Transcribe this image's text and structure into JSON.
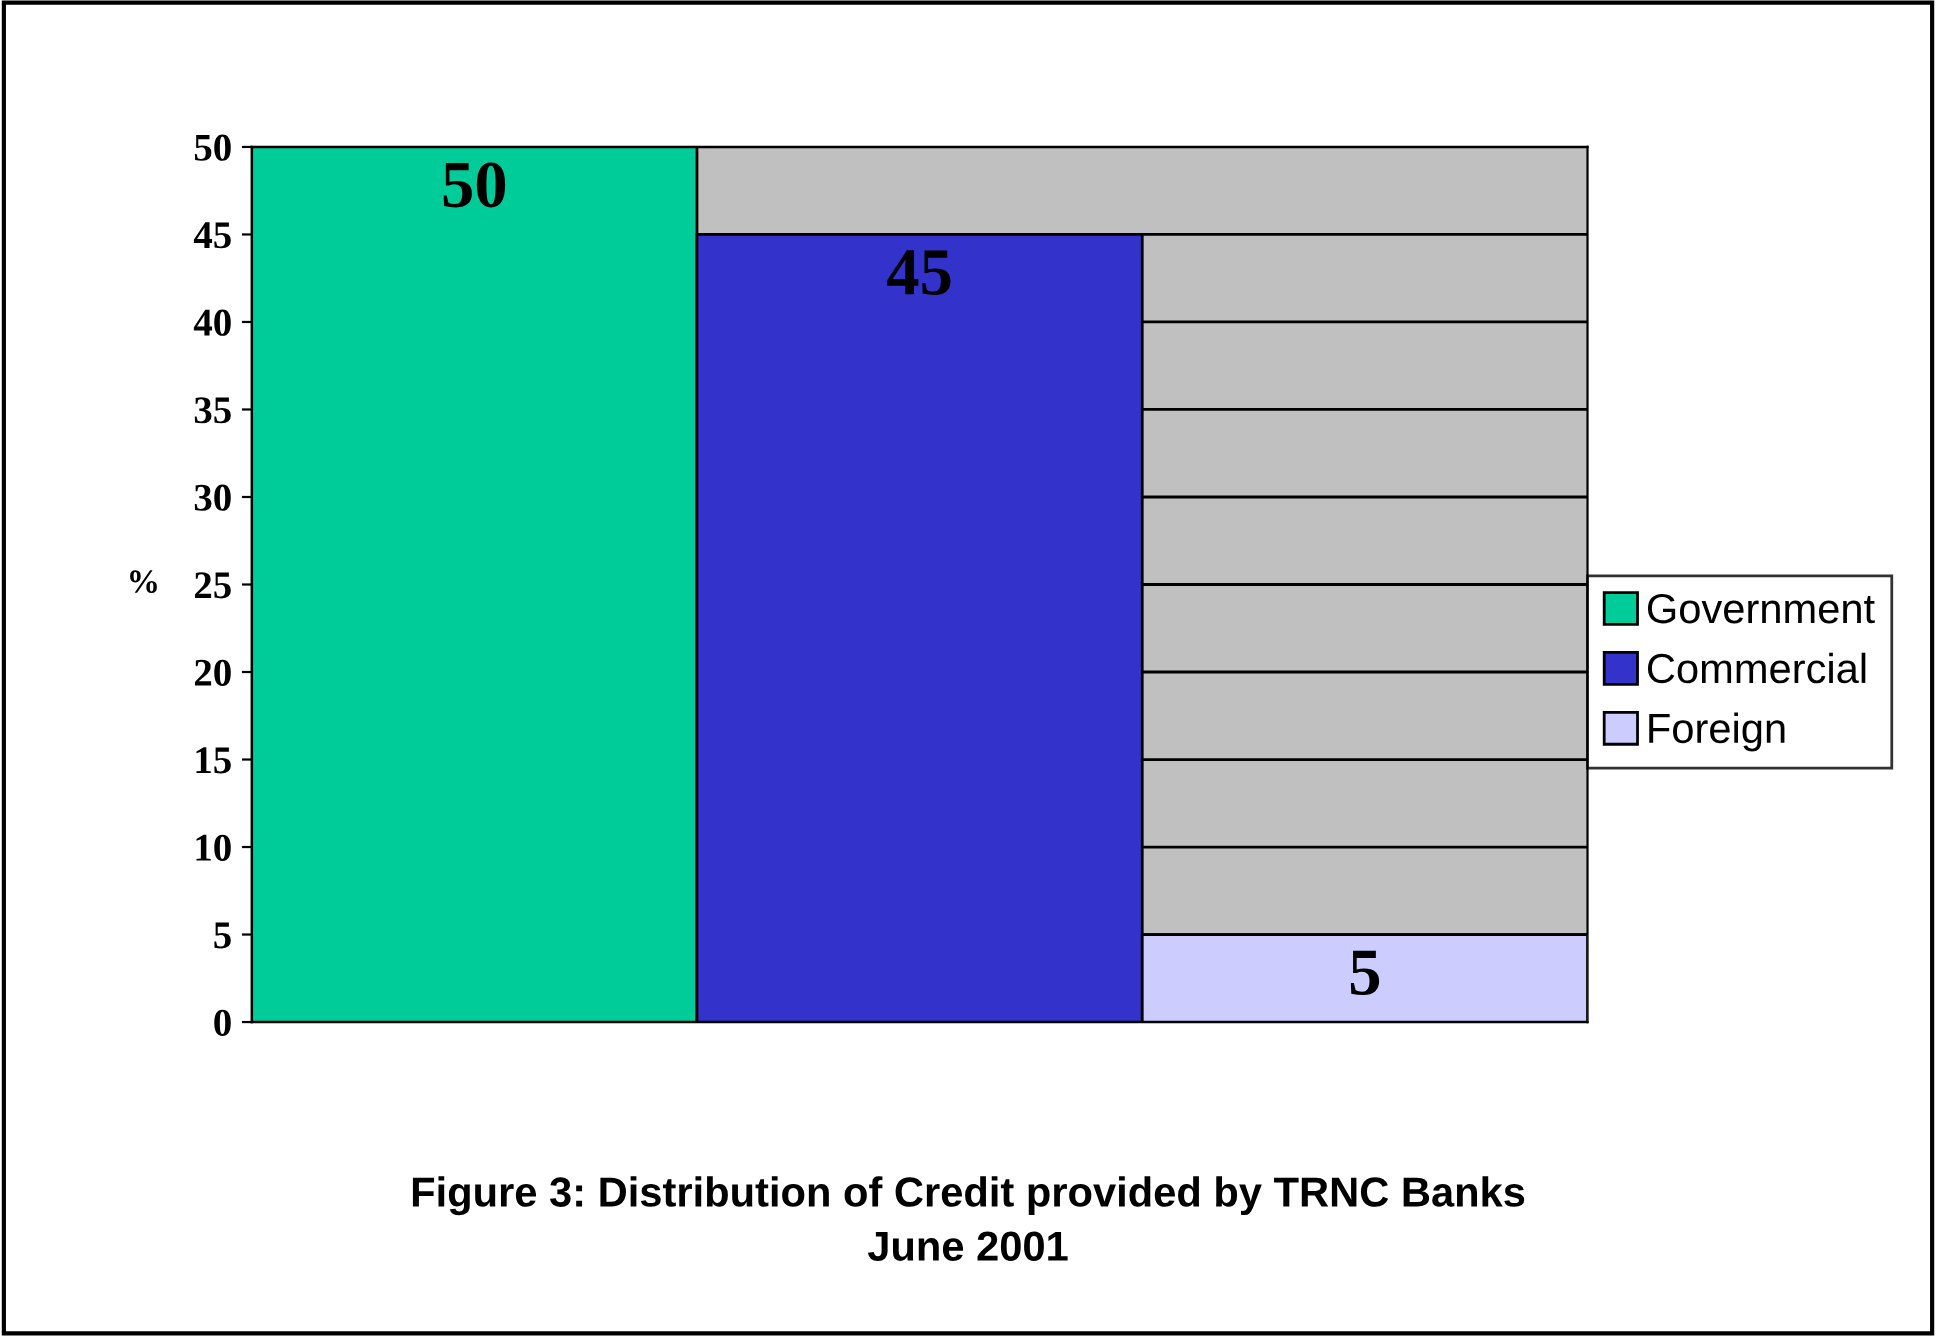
{
  "chart_data": {
    "type": "bar",
    "title": "Figure 3: Distribution of Credit provided by TRNC Banks\nJune 2001",
    "ylabel": "%",
    "categories": [
      null
    ],
    "series": [
      {
        "name": "Government",
        "color": "#00cc99",
        "values": [
          50
        ]
      },
      {
        "name": "Commercial",
        "color": "#3333cc",
        "values": [
          45
        ]
      },
      {
        "name": "Foreign",
        "color": "#ccccff",
        "values": [
          5
        ]
      }
    ],
    "ylim": [
      0,
      50
    ],
    "yticks": [
      0,
      5,
      10,
      15,
      20,
      25,
      30,
      35,
      40,
      45,
      50
    ],
    "grid": "y",
    "legend": "right",
    "data_labels": true,
    "tick_labels": "y"
  }
}
